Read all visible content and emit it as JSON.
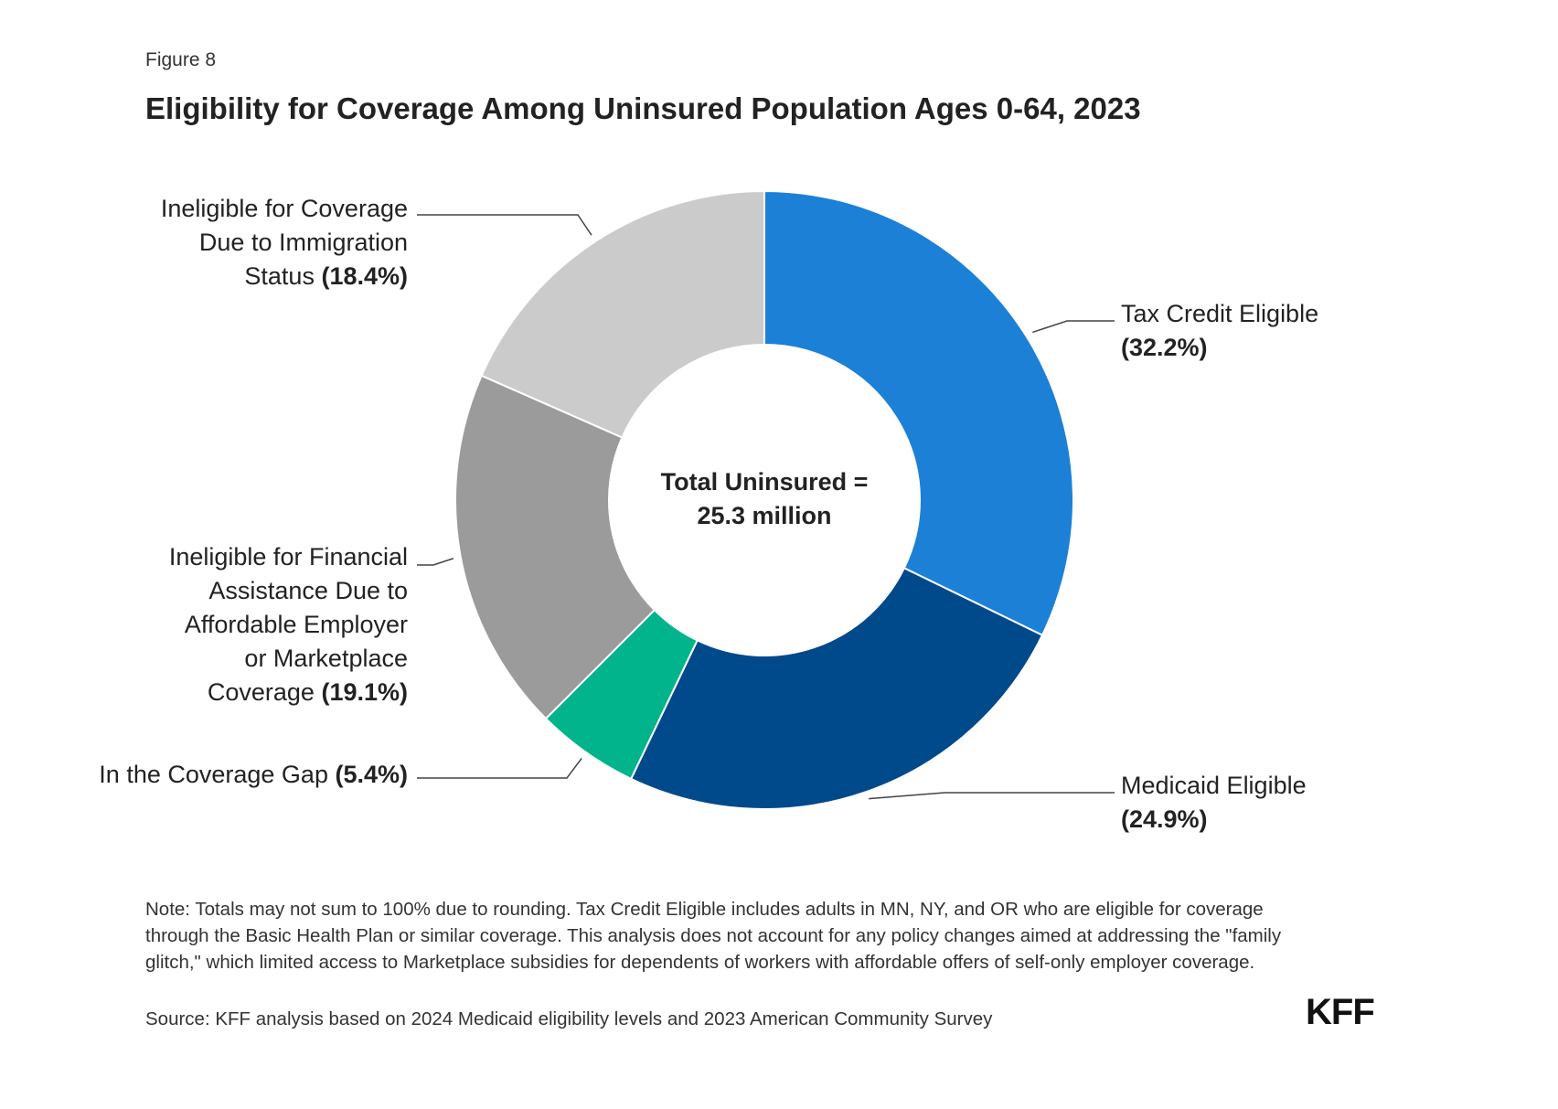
{
  "figure_label": "Figure 8",
  "title": "Eligibility for Coverage Among Uninsured Population Ages 0-64, 2023",
  "center": {
    "line1": "Total Uninsured =",
    "line2": "25.3 million"
  },
  "chart_data": {
    "type": "pie",
    "donut": true,
    "title": "Eligibility for Coverage Among Uninsured Population Ages 0-64, 2023",
    "total_label": "Total Uninsured = 25.3 million",
    "unit": "%",
    "slices": [
      {
        "name": "Tax Credit Eligible",
        "value": 32.2,
        "color": "#1c80d6",
        "label_lines": [
          "Tax Credit Eligible"
        ],
        "pct_text": "(32.2%)",
        "side": "right"
      },
      {
        "name": "Medicaid Eligible",
        "value": 24.9,
        "color": "#00498a",
        "label_lines": [
          "Medicaid Eligible"
        ],
        "pct_text": "(24.9%)",
        "side": "right"
      },
      {
        "name": "In the Coverage Gap",
        "value": 5.4,
        "color": "#01b48c",
        "label_lines": [
          "In the Coverage Gap"
        ],
        "pct_text": "(5.4%)",
        "side": "left"
      },
      {
        "name": "Ineligible for Financial Assistance Due to Affordable Employer or Marketplace Coverage",
        "value": 19.1,
        "color": "#9b9b9b",
        "label_lines": [
          "Ineligible for Financial",
          "Assistance Due to",
          "Affordable Employer",
          "or Marketplace",
          "Coverage"
        ],
        "pct_text": "(19.1%)",
        "side": "left"
      },
      {
        "name": "Ineligible for Coverage Due to Immigration Status",
        "value": 18.4,
        "color": "#cbcbcb",
        "label_lines": [
          "Ineligible for Coverage",
          "Due to Immigration",
          "Status"
        ],
        "pct_text": "(18.4%)",
        "side": "left"
      }
    ]
  },
  "note": "Note: Totals may not sum to 100% due to rounding. Tax Credit Eligible includes adults in MN, NY, and OR who are eligible for coverage through the Basic Health Plan or similar coverage. This analysis does not account for any policy changes aimed at addressing the \"family glitch,\" which limited access to Marketplace subsidies for dependents of workers with affordable offers of self-only employer coverage.",
  "source": "Source: KFF analysis based on 2024 Medicaid eligibility levels and 2023 American Community Survey",
  "logo": "KFF"
}
